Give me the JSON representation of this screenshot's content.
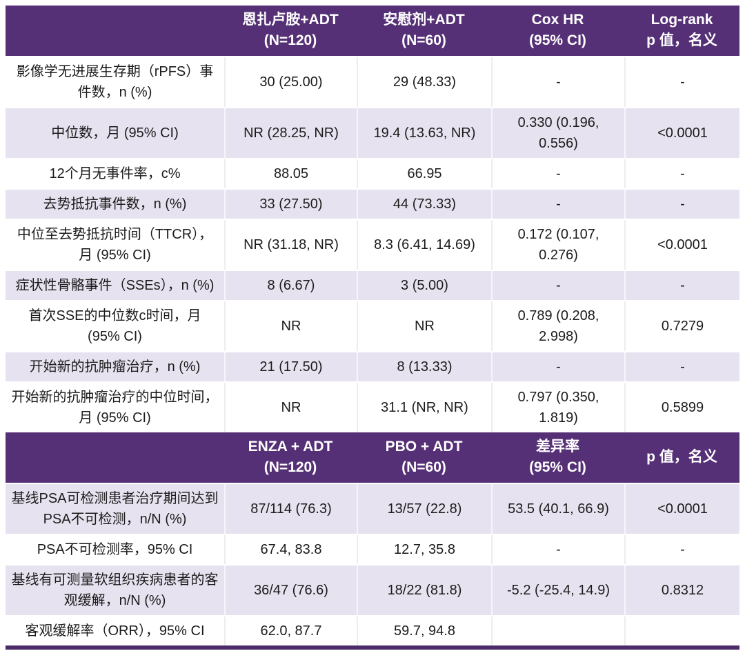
{
  "colors": {
    "header_bg": "#563076",
    "header_text": "#ffffff",
    "row_bg": "#ffffff",
    "row_alt_bg": "#e7e2ef",
    "bottom_border": "#4b2b69",
    "text": "#1b1b1b"
  },
  "chart_data": {
    "type": "table",
    "sections": [
      {
        "columns": [
          {
            "line1": "",
            "line2": ""
          },
          {
            "line1": "恩扎卢胺+ADT",
            "line2": "(N=120)"
          },
          {
            "line1": "安慰剂+ADT",
            "line2": "(N=60)"
          },
          {
            "line1": "Cox HR",
            "line2": "(95% CI)"
          },
          {
            "line1": "Log-rank",
            "line2": "p 值，名义"
          }
        ],
        "rows": [
          {
            "label": "影像学无进展生存期（rPFS）事件数，n (%)",
            "values": [
              "30 (25.00)",
              "29 (48.33)",
              "-",
              "-"
            ],
            "shaded": false
          },
          {
            "label": "中位数，月 (95% CI)",
            "values": [
              "NR (28.25, NR)",
              "19.4 (13.63, NR)",
              "0.330 (0.196, 0.556)",
              "<0.0001"
            ],
            "shaded": true
          },
          {
            "label": "12个月无事件率，c%",
            "values": [
              "88.05",
              "66.95",
              "-",
              "-"
            ],
            "shaded": false
          },
          {
            "label": "去势抵抗事件数，n (%)",
            "values": [
              "33 (27.50)",
              "44 (73.33)",
              "-",
              "-"
            ],
            "shaded": true
          },
          {
            "label": "中位至去势抵抗时间（TTCR），月 (95% CI)",
            "values": [
              "NR (31.18, NR)",
              "8.3 (6.41, 14.69)",
              "0.172 (0.107, 0.276)",
              "<0.0001"
            ],
            "shaded": false
          },
          {
            "label": "症状性骨骼事件（SSEs），n (%)",
            "values": [
              "8 (6.67)",
              "3 (5.00)",
              "-",
              "-"
            ],
            "shaded": true
          },
          {
            "label": "首次SSE的中位数c时间，月 (95% CI)",
            "values": [
              "NR",
              "NR",
              "0.789 (0.208, 2.998)",
              "0.7279"
            ],
            "shaded": false
          },
          {
            "label": "开始新的抗肿瘤治疗，n (%)",
            "values": [
              "21 (17.50)",
              "8 (13.33)",
              "-",
              "-"
            ],
            "shaded": true
          },
          {
            "label": "开始新的抗肿瘤治疗的中位时间，月 (95% CI)",
            "values": [
              "NR",
              "31.1 (NR, NR)",
              "0.797 (0.350, 1.819)",
              "0.5899"
            ],
            "shaded": false
          }
        ]
      },
      {
        "columns": [
          {
            "line1": "",
            "line2": ""
          },
          {
            "line1": "ENZA + ADT",
            "line2": "(N=120)"
          },
          {
            "line1": "PBO + ADT",
            "line2": "(N=60)"
          },
          {
            "line1": "差异率",
            "line2": "(95% CI)"
          },
          {
            "line1": "p 值，名义",
            "line2": ""
          }
        ],
        "rows": [
          {
            "label": "基线PSA可检测患者治疗期间达到PSA不可检测，n/N (%)",
            "values": [
              "87/114 (76.3)",
              "13/57 (22.8)",
              "53.5 (40.1, 66.9)",
              "<0.0001"
            ],
            "shaded": true
          },
          {
            "label": "PSA不可检测率，95% CI",
            "values": [
              "67.4, 83.8",
              "12.7, 35.8",
              "-",
              "-"
            ],
            "shaded": false
          },
          {
            "label": "基线有可测量软组织疾病患者的客观缓解，n/N (%)",
            "values": [
              "36/47 (76.6)",
              "18/22 (81.8)",
              "-5.2 (-25.4, 14.9)",
              "0.8312"
            ],
            "shaded": true
          },
          {
            "label": "客观缓解率（ORR），95% CI",
            "values": [
              "62.0, 87.7",
              "59.7, 94.8",
              "",
              ""
            ],
            "shaded": false
          }
        ]
      }
    ]
  }
}
